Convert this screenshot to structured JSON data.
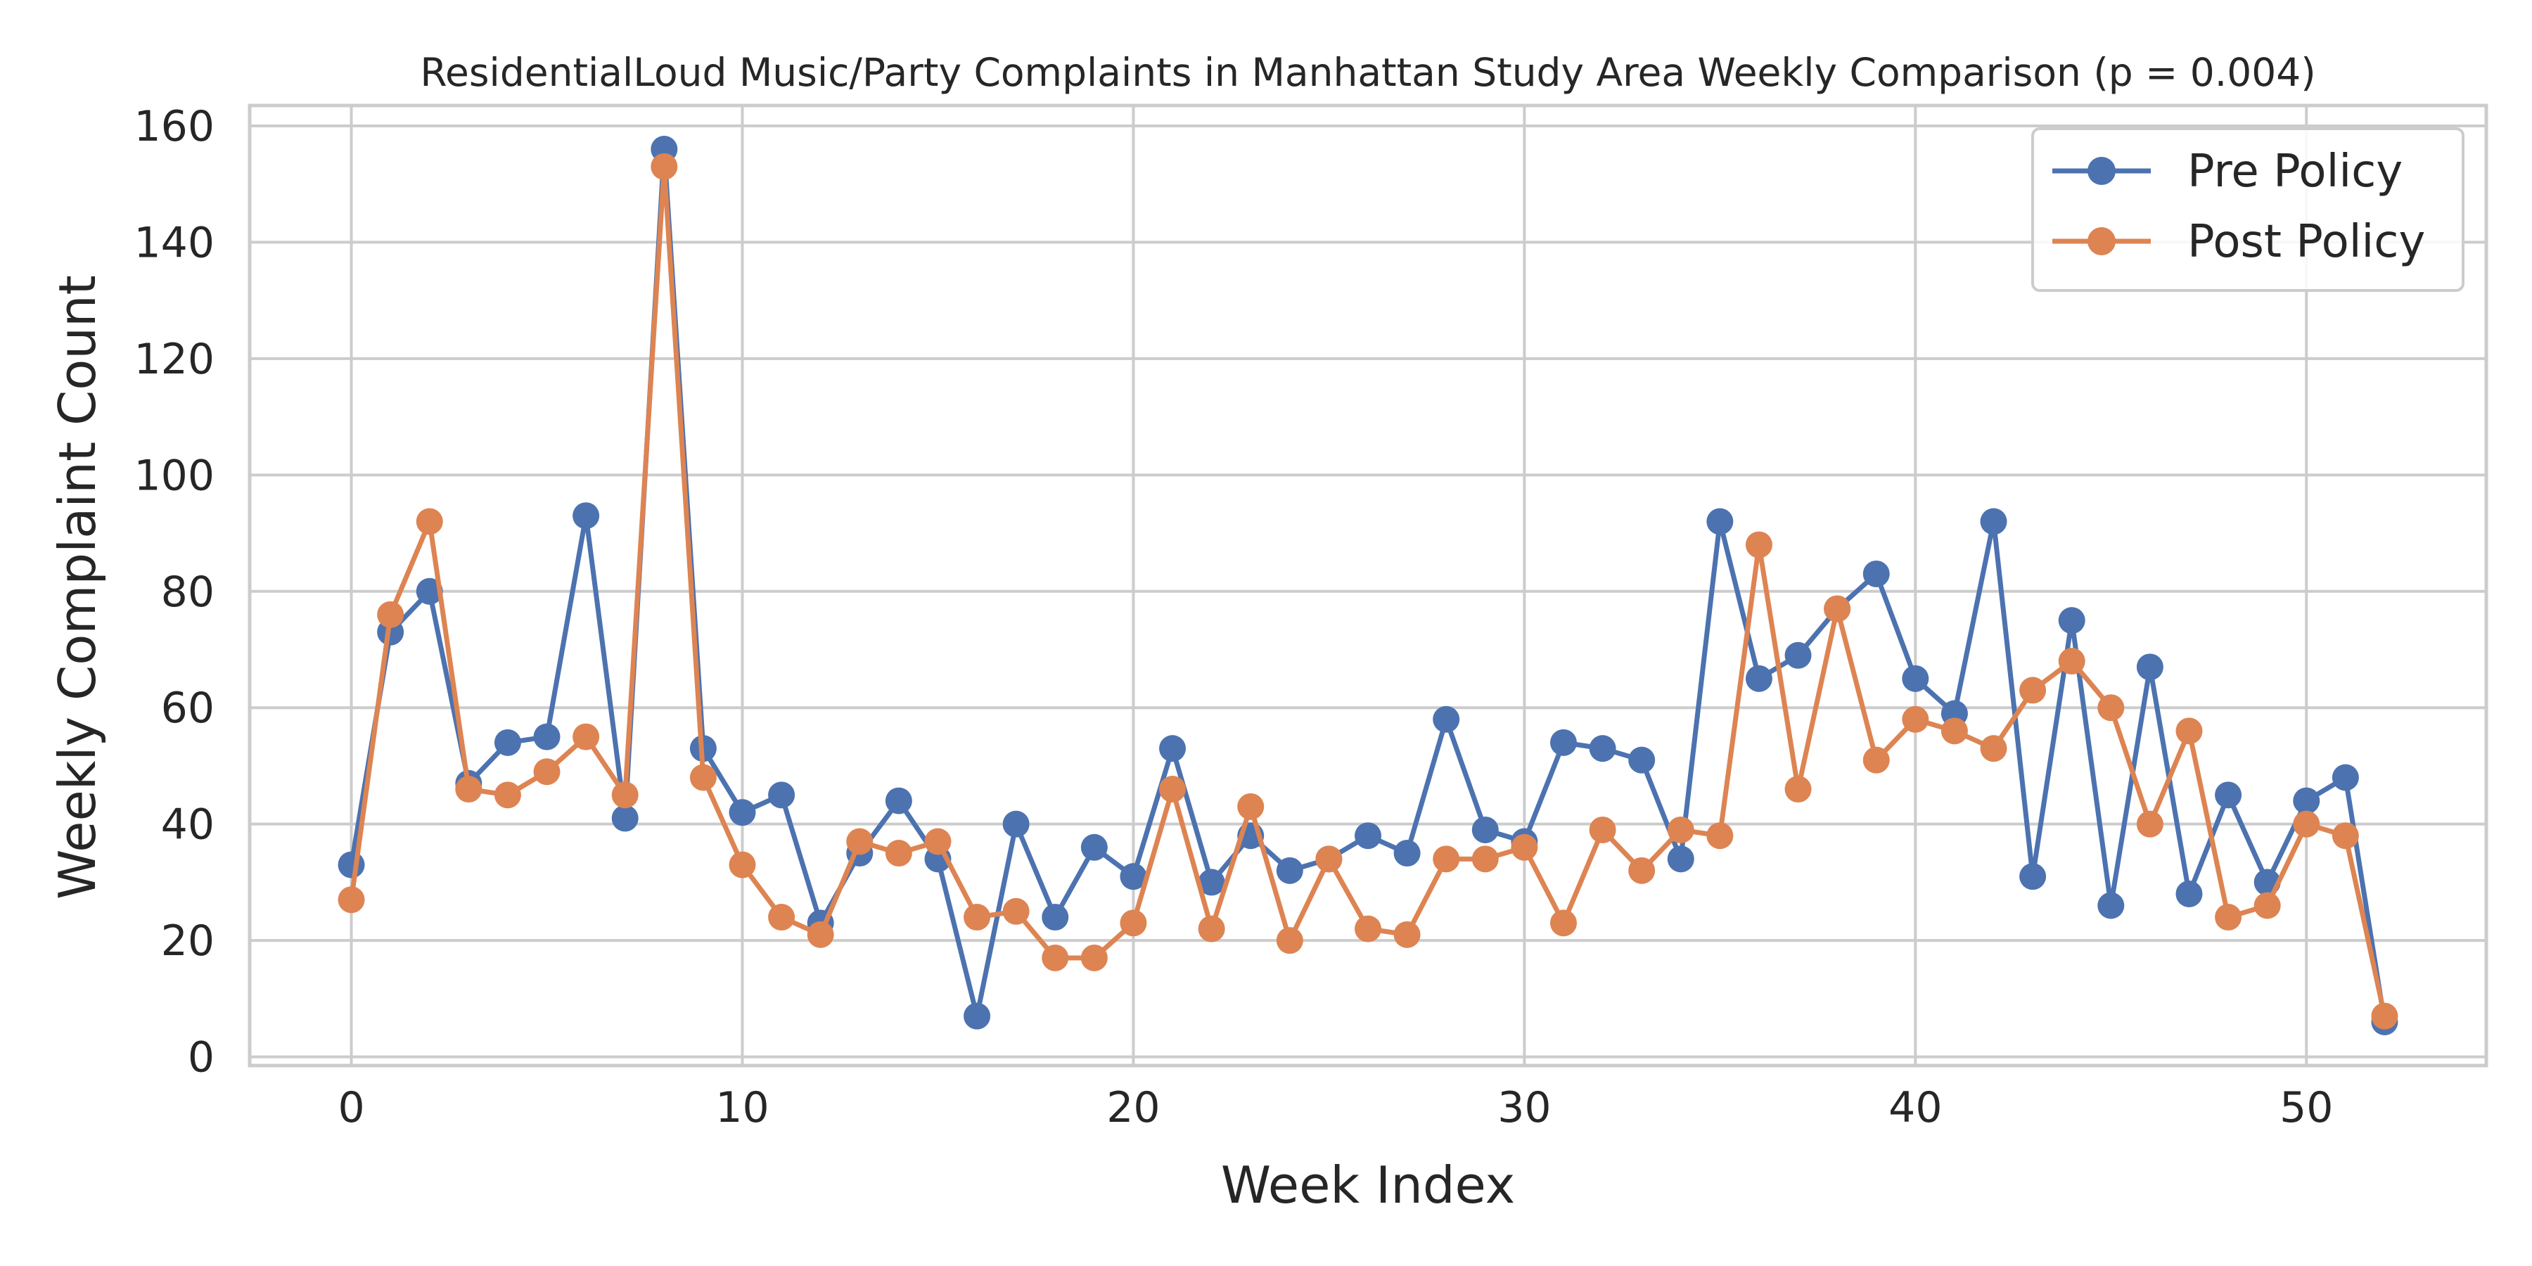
{
  "chart_data": {
    "type": "line",
    "title": "ResidentialLoud Music/Party Complaints in Manhattan Study Area Weekly Comparison (p = 0.004)",
    "xlabel": "Week Index",
    "ylabel": "Weekly Complaint Count",
    "xlim": [
      -2.6,
      54.6
    ],
    "ylim": [
      -1.5,
      163.5
    ],
    "x_ticks": [
      0,
      10,
      20,
      30,
      40,
      50
    ],
    "y_ticks": [
      0,
      20,
      40,
      60,
      80,
      100,
      120,
      140,
      160
    ],
    "grid": true,
    "legend_position": "top-right",
    "x": [
      0,
      1,
      2,
      3,
      4,
      5,
      6,
      7,
      8,
      9,
      10,
      11,
      12,
      13,
      14,
      15,
      16,
      17,
      18,
      19,
      20,
      21,
      22,
      23,
      24,
      25,
      26,
      27,
      28,
      29,
      30,
      31,
      32,
      33,
      34,
      35,
      36,
      37,
      38,
      39,
      40,
      41,
      42,
      43,
      44,
      45,
      46,
      47,
      48,
      49,
      50,
      51,
      52
    ],
    "series": [
      {
        "name": "Pre Policy",
        "color": "#4c72b0",
        "marker": "circle",
        "values": [
          33,
          73,
          80,
          47,
          54,
          55,
          93,
          41,
          156,
          53,
          42,
          45,
          23,
          35,
          44,
          34,
          7,
          40,
          24,
          36,
          31,
          53,
          30,
          38,
          32,
          34,
          38,
          35,
          58,
          39,
          37,
          54,
          53,
          51,
          34,
          92,
          65,
          69,
          77,
          83,
          65,
          59,
          92,
          31,
          75,
          26,
          67,
          28,
          45,
          30,
          44,
          48,
          6
        ]
      },
      {
        "name": "Post Policy",
        "color": "#dd8452",
        "marker": "circle",
        "values": [
          27,
          76,
          92,
          46,
          45,
          49,
          55,
          45,
          153,
          48,
          33,
          24,
          21,
          37,
          35,
          37,
          24,
          25,
          17,
          17,
          23,
          46,
          22,
          43,
          20,
          34,
          22,
          21,
          34,
          34,
          36,
          23,
          39,
          32,
          39,
          38,
          88,
          46,
          77,
          51,
          58,
          56,
          53,
          63,
          68,
          60,
          40,
          56,
          24,
          26,
          40,
          38,
          7
        ]
      }
    ]
  }
}
